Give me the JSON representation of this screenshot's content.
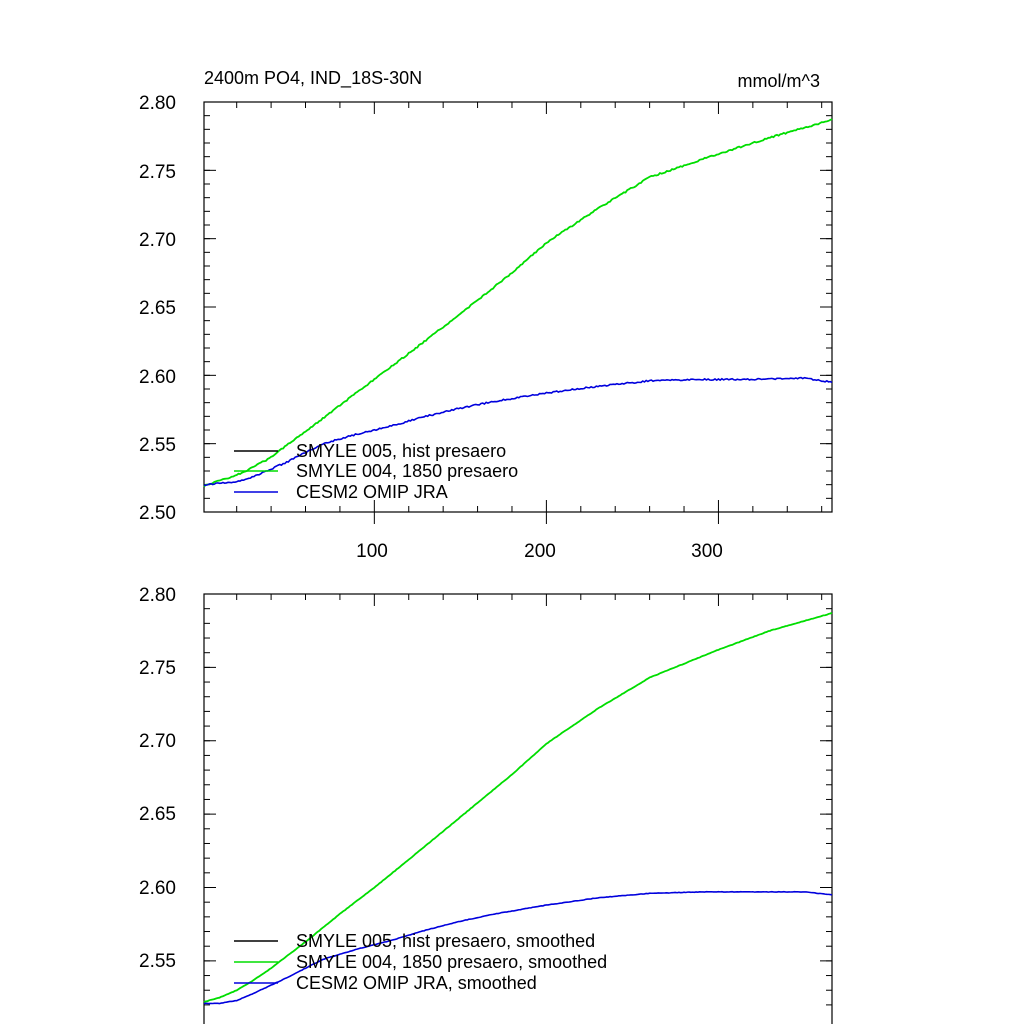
{
  "chart_data": [
    {
      "type": "line",
      "title": "2400m PO4, IND_18S-30N",
      "units": "mmol/m^3",
      "xlim": [
        1,
        366
      ],
      "ylim": [
        2.5,
        2.8
      ],
      "xticks": [
        100,
        200,
        300
      ],
      "xtick_labels": [
        "100",
        "200",
        "300"
      ],
      "yticks": [
        2.5,
        2.55,
        2.6,
        2.65,
        2.7,
        2.75,
        2.8
      ],
      "ytick_labels": [
        "2.50",
        "2.55",
        "2.60",
        "2.65",
        "2.70",
        "2.75",
        "2.80"
      ],
      "legend_position": "bottom-left",
      "series": [
        {
          "name": "SMYLE 005, hist presaero",
          "color": "#000000",
          "x": [],
          "y": []
        },
        {
          "name": "SMYLE 004, 1850 presaero",
          "color": "#00dd00",
          "x": [
            1,
            10,
            20,
            30,
            40,
            50,
            60,
            80,
            100,
            120,
            150,
            180,
            200,
            230,
            260,
            300,
            330,
            366
          ],
          "y": [
            2.519,
            2.523,
            2.527,
            2.533,
            2.54,
            2.55,
            2.559,
            2.578,
            2.597,
            2.616,
            2.645,
            2.675,
            2.697,
            2.722,
            2.745,
            2.762,
            2.774,
            2.787
          ]
        },
        {
          "name": "CESM2 OMIP JRA",
          "color": "#0000dd",
          "x": [
            1,
            10,
            20,
            30,
            50,
            70,
            90,
            110,
            130,
            150,
            170,
            200,
            230,
            260,
            290,
            320,
            350,
            366
          ],
          "y": [
            2.52,
            2.521,
            2.522,
            2.526,
            2.537,
            2.55,
            2.557,
            2.563,
            2.57,
            2.576,
            2.581,
            2.587,
            2.592,
            2.596,
            2.597,
            2.597,
            2.598,
            2.595
          ]
        }
      ]
    },
    {
      "type": "line",
      "xlim": [
        1,
        366
      ],
      "ylim": [
        2.52,
        2.8
      ],
      "xticks": [
        100,
        200,
        300
      ],
      "yticks": [
        2.55,
        2.6,
        2.65,
        2.7,
        2.75,
        2.8
      ],
      "ytick_labels": [
        "2.55",
        "2.60",
        "2.65",
        "2.70",
        "2.75",
        "2.80"
      ],
      "legend_position": "bottom-left",
      "series": [
        {
          "name": "SMYLE 005, hist presaero, smoothed",
          "color": "#000000",
          "x": [],
          "y": []
        },
        {
          "name": "SMYLE 004, 1850 presaero, smoothed",
          "color": "#00dd00",
          "x": [
            1,
            10,
            20,
            30,
            40,
            50,
            60,
            80,
            100,
            120,
            150,
            180,
            200,
            230,
            260,
            300,
            330,
            366
          ],
          "y": [
            2.522,
            2.525,
            2.53,
            2.537,
            2.545,
            2.554,
            2.563,
            2.582,
            2.6,
            2.619,
            2.648,
            2.677,
            2.698,
            2.722,
            2.743,
            2.762,
            2.775,
            2.787
          ]
        },
        {
          "name": "CESM2 OMIP JRA, smoothed",
          "color": "#0000dd",
          "x": [
            1,
            10,
            20,
            30,
            50,
            70,
            90,
            110,
            130,
            150,
            170,
            200,
            230,
            260,
            290,
            320,
            350,
            366
          ],
          "y": [
            2.521,
            2.521,
            2.523,
            2.528,
            2.539,
            2.551,
            2.558,
            2.564,
            2.571,
            2.577,
            2.582,
            2.588,
            2.593,
            2.596,
            2.597,
            2.597,
            2.597,
            2.595
          ]
        }
      ]
    }
  ]
}
